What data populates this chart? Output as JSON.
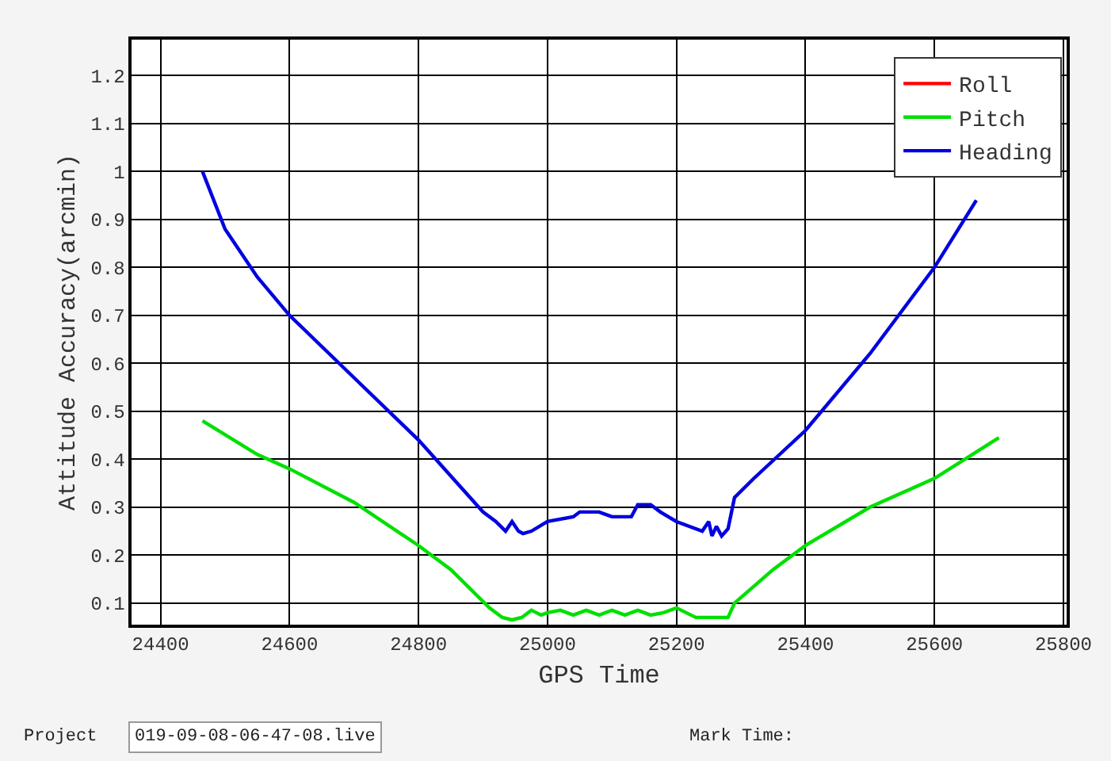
{
  "chart_data": {
    "type": "line",
    "xlabel": "GPS Time",
    "ylabel": "Attitude Accuracy(arcmin)",
    "xlim": [
      24355,
      25805
    ],
    "xticks": [
      24400,
      24600,
      24800,
      25000,
      25200,
      25400,
      25600,
      25800
    ],
    "ylim": [
      0.055,
      1.275
    ],
    "yticks": [
      0.1,
      0.2,
      0.3,
      0.4,
      0.5,
      0.6,
      0.7,
      0.8,
      0.9,
      1,
      1.1,
      1.2
    ],
    "grid": true,
    "legend": "top right",
    "marker": "none",
    "line_style": "solid",
    "annotations": [
      "Project",
      "019-09-08-06-47-08.live",
      "Mark Time:"
    ],
    "series": [
      {
        "name": "Roll",
        "color": "#ff0000"
      },
      {
        "name": "Pitch",
        "color": "#00e000",
        "x": [
          24465,
          24550,
          24600,
          24700,
          24800,
          24850,
          24880,
          24910,
          24930,
          24945,
          24960,
          24975,
          24990,
          25000,
          25020,
          25040,
          25060,
          25080,
          25100,
          25120,
          25140,
          25160,
          25180,
          25200,
          25215,
          25230,
          25260,
          25280,
          25290,
          25350,
          25400,
          25500,
          25600,
          25700
        ],
        "values": [
          0.48,
          0.41,
          0.38,
          0.31,
          0.22,
          0.17,
          0.13,
          0.09,
          0.07,
          0.065,
          0.07,
          0.085,
          0.075,
          0.08,
          0.085,
          0.075,
          0.085,
          0.075,
          0.085,
          0.075,
          0.085,
          0.075,
          0.08,
          0.09,
          0.08,
          0.07,
          0.07,
          0.07,
          0.1,
          0.17,
          0.22,
          0.3,
          0.36,
          0.445
        ]
      },
      {
        "name": "Heading",
        "color": "#0000e0",
        "x": [
          24465,
          24500,
          24550,
          24600,
          24700,
          24800,
          24860,
          24900,
          24920,
          24935,
          24945,
          24955,
          24962,
          24975,
          25000,
          25040,
          25050,
          25080,
          25100,
          25130,
          25140,
          25160,
          25175,
          25200,
          25240,
          25250,
          25255,
          25262,
          25270,
          25280,
          25290,
          25320,
          25400,
          25500,
          25600,
          25665
        ],
        "values": [
          1.0,
          0.88,
          0.78,
          0.7,
          0.57,
          0.44,
          0.35,
          0.29,
          0.27,
          0.25,
          0.27,
          0.25,
          0.245,
          0.25,
          0.27,
          0.28,
          0.29,
          0.29,
          0.28,
          0.28,
          0.305,
          0.305,
          0.29,
          0.27,
          0.25,
          0.27,
          0.24,
          0.26,
          0.24,
          0.255,
          0.32,
          0.36,
          0.46,
          0.62,
          0.8,
          0.94
        ]
      }
    ]
  }
}
